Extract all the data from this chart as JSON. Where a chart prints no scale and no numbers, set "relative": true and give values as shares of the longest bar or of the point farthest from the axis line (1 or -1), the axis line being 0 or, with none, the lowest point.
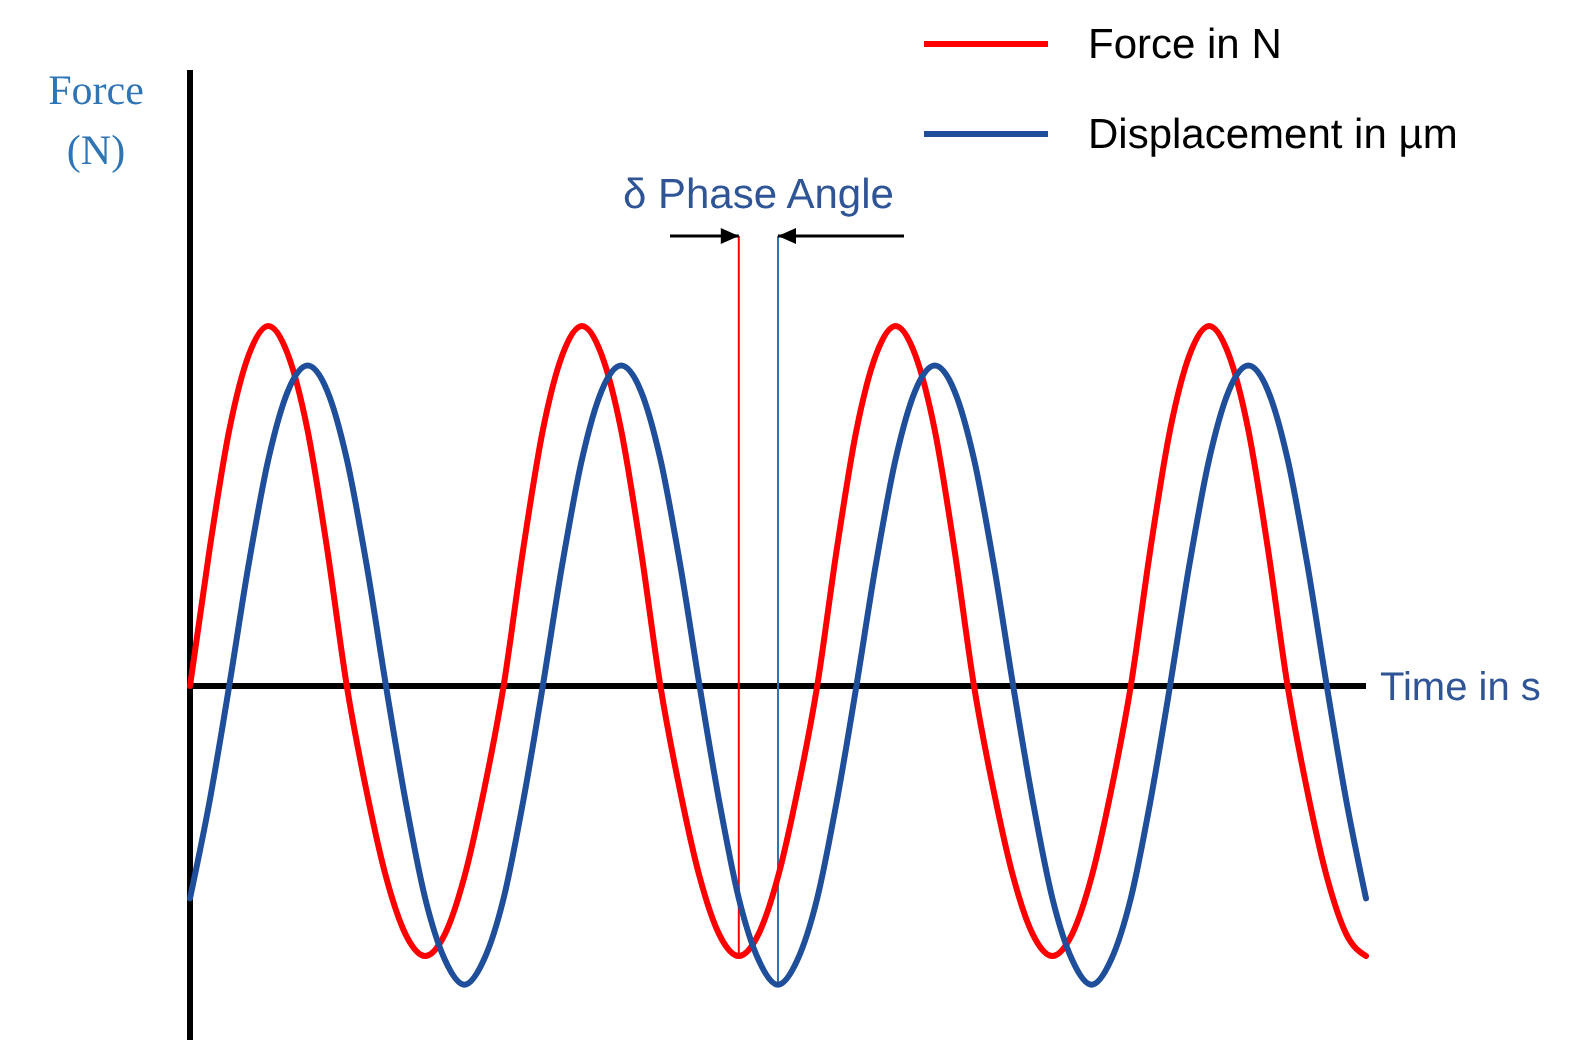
{
  "chart_data": {
    "type": "line",
    "relative": true,
    "xlabel": "Time in s",
    "ylabel": "Force\n(N)",
    "legend": "top right",
    "marker": "none",
    "line_style": "solid",
    "annotations": [
      "δ Phase Angle"
    ],
    "categories": [
      null,
      null,
      null,
      null,
      null,
      null,
      null,
      null,
      null,
      null,
      null,
      null,
      null,
      null,
      null,
      null,
      null,
      null,
      null,
      null,
      null,
      null,
      null,
      null,
      null,
      null,
      null,
      null,
      null,
      null,
      null,
      null,
      null,
      null,
      null,
      null,
      null,
      null,
      null,
      null,
      null,
      null,
      null,
      null,
      null,
      null,
      null,
      null,
      null,
      null,
      null,
      null,
      null,
      null,
      null,
      null,
      null,
      null,
      null,
      null,
      null
    ],
    "series": [
      {
        "name": "Force in N",
        "color": "#ff0000",
        "values": [
          0,
          0.38,
          0.71,
          0.92,
          1,
          0.92,
          0.71,
          0.38,
          0,
          -0.29,
          -0.53,
          -0.69,
          -0.75,
          -0.69,
          -0.53,
          -0.29,
          0,
          0.38,
          0.71,
          0.92,
          1,
          0.92,
          0.71,
          0.38,
          0,
          -0.29,
          -0.53,
          -0.69,
          -0.75,
          -0.69,
          -0.53,
          -0.29,
          0,
          0.38,
          0.71,
          0.92,
          1,
          0.92,
          0.71,
          0.38,
          0,
          -0.29,
          -0.53,
          -0.69,
          -0.75,
          -0.69,
          -0.53,
          -0.29,
          0,
          0.38,
          0.71,
          0.92,
          1,
          0.92,
          0.71,
          0.38,
          0,
          -0.29,
          -0.53,
          -0.69,
          -0.75
        ]
      },
      {
        "name": "Displacement in µm",
        "color": "#1f4e9a",
        "values": [
          -0.59,
          -0.32,
          0,
          0.34,
          0.63,
          0.82,
          0.89,
          0.82,
          0.63,
          0.34,
          0,
          -0.32,
          -0.59,
          -0.76,
          -0.83,
          -0.76,
          -0.59,
          -0.32,
          0,
          0.34,
          0.63,
          0.82,
          0.89,
          0.82,
          0.63,
          0.34,
          0,
          -0.32,
          -0.59,
          -0.76,
          -0.83,
          -0.76,
          -0.59,
          -0.32,
          0,
          0.34,
          0.63,
          0.82,
          0.89,
          0.82,
          0.63,
          0.34,
          0,
          -0.32,
          -0.59,
          -0.76,
          -0.83,
          -0.76,
          -0.59,
          -0.32,
          0,
          0.34,
          0.63,
          0.82,
          0.89,
          0.82,
          0.63,
          0.34,
          0,
          -0.32,
          -0.59
        ]
      }
    ]
  }
}
